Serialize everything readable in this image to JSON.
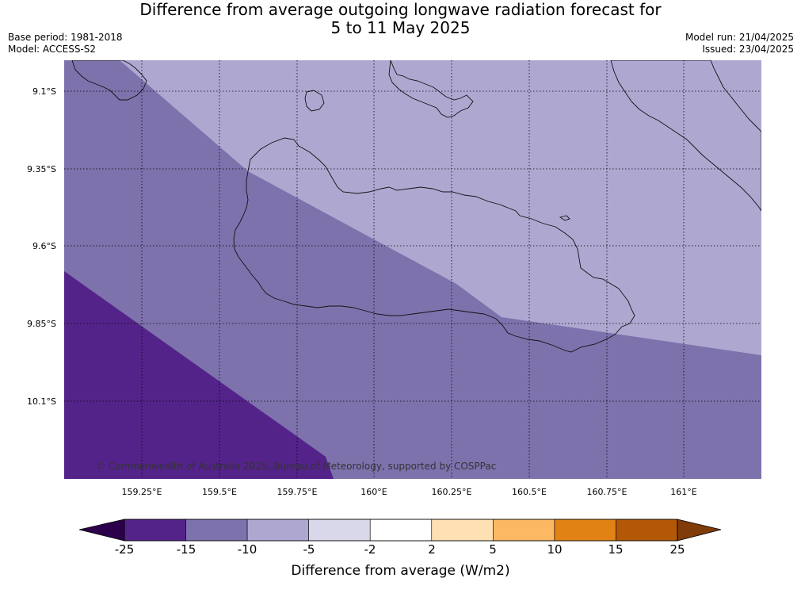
{
  "title": {
    "line1": "Difference from average outgoing longwave radiation forecast for",
    "line2": "5 to 11 May 2025"
  },
  "meta": {
    "base_period": "Base period: 1981-2018",
    "model": "Model: ACCESS-S2",
    "model_run": "Model run: 21/04/2025",
    "issued": "Issued: 23/04/2025"
  },
  "copyright": "© Commonwealth of Australia 2025, Bureau of Meteorology, supported by COSPPac",
  "map": {
    "latitude_labels": [
      "9.1°S",
      "9.35°S",
      "9.6°S",
      "9.85°S",
      "10.1°S"
    ],
    "longitude_labels": [
      "159.25°E",
      "159.5°E",
      "159.75°E",
      "160°E",
      "160.25°E",
      "160.5°E",
      "160.75°E",
      "161°E"
    ],
    "regions": [
      {
        "category": "-10 to -5",
        "color": "#aea8d1"
      },
      {
        "category": "-15 to -10",
        "color": "#7e72ad"
      },
      {
        "category": "-25 to -15",
        "color": "#54238a"
      }
    ]
  },
  "colorbar": {
    "label": "Difference from average (W/m2)",
    "ticks": [
      "-25",
      "-15",
      "-10",
      "-5",
      "-2",
      "2",
      "5",
      "10",
      "15",
      "25"
    ],
    "colors": [
      "#54238a",
      "#7e72ad",
      "#aea8d1",
      "#d9d8ea",
      "#ffffff",
      "#ffe0b3",
      "#fdb863",
      "#e08214",
      "#b35806"
    ],
    "under_color": "#2d004b",
    "over_color": "#7f3b08"
  }
}
